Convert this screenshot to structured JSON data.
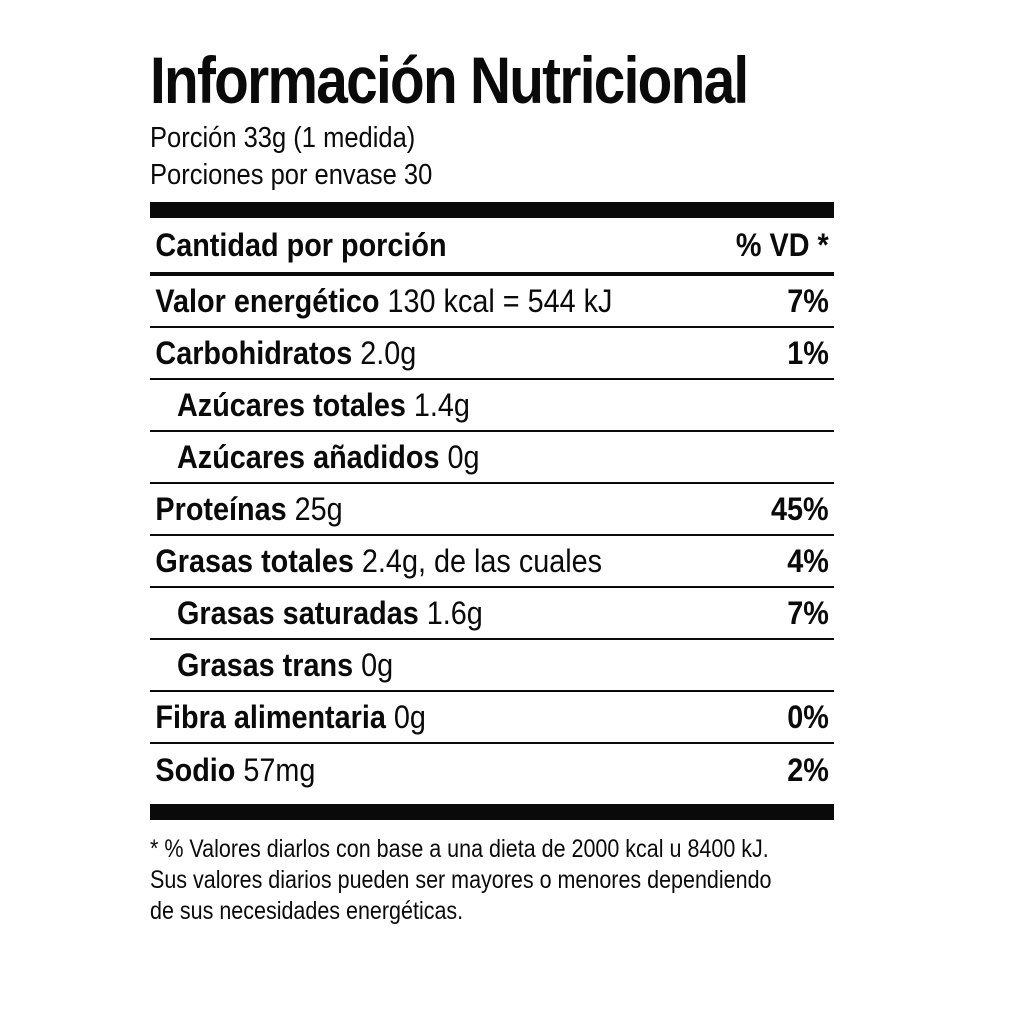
{
  "label": {
    "title": "Información Nutricional",
    "serving_size": "Porción 33g (1 medida)",
    "servings_per_container": "Porciones por envase 30",
    "header": {
      "left": "Cantidad por porción",
      "right": "% VD *"
    },
    "rows": [
      {
        "name": "Valor energético",
        "amount": "130 kcal = 544 kJ",
        "dv": "7%"
      },
      {
        "name": "Carbohidratos",
        "amount": "2.0g",
        "dv": "1%"
      },
      {
        "name": "Azúcares totales",
        "amount": "1.4g",
        "dv": ""
      },
      {
        "name": "Azúcares añadidos",
        "amount": "0g",
        "dv": ""
      },
      {
        "name": "Proteínas",
        "amount": "25g",
        "dv": "45%"
      },
      {
        "name": "Grasas totales",
        "amount": "2.4g, de las cuales",
        "dv": "4%"
      },
      {
        "name": "Grasas saturadas",
        "amount": "1.6g",
        "dv": "7%"
      },
      {
        "name": "Grasas trans",
        "amount": "0g",
        "dv": ""
      },
      {
        "name": "Fibra alimentaria",
        "amount": "0g",
        "dv": "0%"
      },
      {
        "name": "Sodio",
        "amount": "57mg",
        "dv": "2%"
      }
    ],
    "footnote": [
      "* % Valores diarlos con base a una dieta de 2000 kcal u 8400 kJ.",
      "Sus valores diarios pueden ser mayores o menores dependiendo",
      "de sus necesidades energéticas."
    ]
  }
}
